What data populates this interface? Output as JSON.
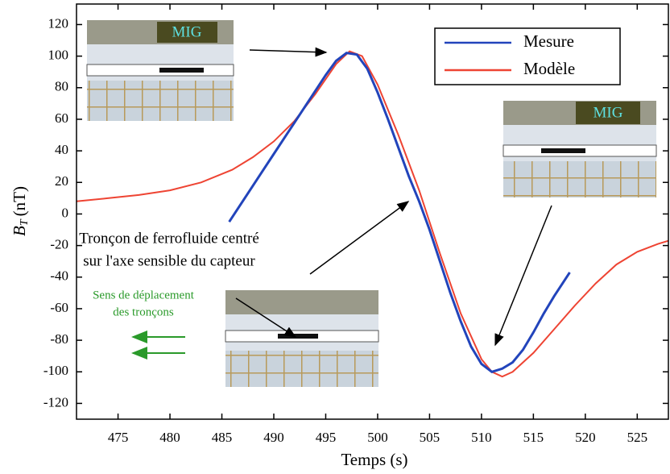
{
  "chart_data": {
    "type": "line",
    "x_label": "Temps (s)",
    "y_label_symbol": "B",
    "y_label_subscript": "T",
    "y_label_unit": "(nT)",
    "xlim": [
      471,
      528
    ],
    "xticks": [
      475,
      480,
      485,
      490,
      495,
      500,
      505,
      510,
      515,
      520,
      525
    ],
    "ylim": [
      -130,
      133
    ],
    "yticks": [
      -120,
      -100,
      -80,
      -60,
      -40,
      -20,
      0,
      20,
      40,
      60,
      80,
      100,
      120
    ],
    "legend": "upper right",
    "series": [
      {
        "name": "Mesure",
        "color": "#2244bb",
        "x": [
          485.7,
          487,
          488,
          489,
          490,
          491,
          492,
          493,
          494,
          495,
          496,
          497,
          498,
          499,
          500,
          501,
          502,
          503,
          504,
          505,
          506,
          507,
          508,
          509,
          510,
          511,
          512,
          513,
          514,
          515,
          516,
          517,
          518,
          518.5
        ],
        "values": [
          -5,
          8,
          18,
          28,
          38,
          48,
          58,
          68,
          78,
          88,
          97,
          102,
          101,
          92,
          77,
          60,
          42,
          24,
          8,
          -10,
          -30,
          -50,
          -68,
          -84,
          -95,
          -100,
          -98,
          -94,
          -86,
          -75,
          -63,
          -52,
          -42,
          -37
        ]
      },
      {
        "name": "Modèle",
        "color": "#ee4433",
        "x": [
          471,
          474,
          477,
          480,
          483,
          486,
          488,
          490,
          492,
          494,
          496,
          497.3,
          498.5,
          500,
          502,
          504,
          506,
          508,
          510,
          511,
          512,
          513,
          515,
          517,
          519,
          521,
          523,
          525,
          527,
          528
        ],
        "values": [
          8,
          10,
          12,
          15,
          20,
          28,
          36,
          46,
          59,
          76,
          95,
          103,
          100,
          82,
          50,
          15,
          -25,
          -63,
          -92,
          -100,
          -103,
          -100,
          -88,
          -73,
          -58,
          -44,
          -32,
          -24,
          -19,
          -17
        ]
      }
    ],
    "inset_labels": [
      "MIG",
      "MIG"
    ],
    "annotation_lines": [
      "Tronçon de ferrofluide centré",
      "sur l'axe sensible du capteur"
    ],
    "direction_lines": [
      "Sens de déplacement",
      "des tronçons"
    ]
  }
}
